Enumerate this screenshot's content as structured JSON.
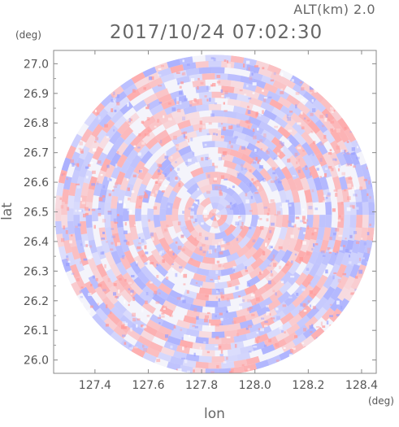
{
  "header": {
    "altitude": "ALT(km) 2.0",
    "timestamp": "2017/10/24 07:02:30",
    "y_unit": "(deg)",
    "x_unit": "(deg)"
  },
  "chart_data": {
    "type": "heatmap",
    "title": "2017/10/24 07:02:30",
    "xlabel": "lon",
    "ylabel": "lat",
    "xlim": [
      127.245,
      128.455
    ],
    "ylim": [
      25.955,
      27.045
    ],
    "x_ticks": [
      "127.4",
      "127.6",
      "127.8",
      "128.0",
      "128.2",
      "128.4"
    ],
    "x_tick_values": [
      127.4,
      127.6,
      127.8,
      128.0,
      128.2,
      128.4
    ],
    "y_ticks": [
      "26.0",
      "26.1",
      "26.2",
      "26.3",
      "26.4",
      "26.5",
      "26.6",
      "26.7",
      "26.8",
      "26.9",
      "27.0"
    ],
    "y_tick_values": [
      26.0,
      26.1,
      26.2,
      26.3,
      26.4,
      26.5,
      26.6,
      26.7,
      26.8,
      26.9,
      27.0
    ],
    "center": {
      "lon": 127.85,
      "lat": 26.49
    },
    "radius_deg_lon": 0.6,
    "colormap": {
      "positive": "#ff9a9a",
      "neutral": "#ffffff",
      "negative": "#9aa0ff"
    },
    "grid": false
  }
}
